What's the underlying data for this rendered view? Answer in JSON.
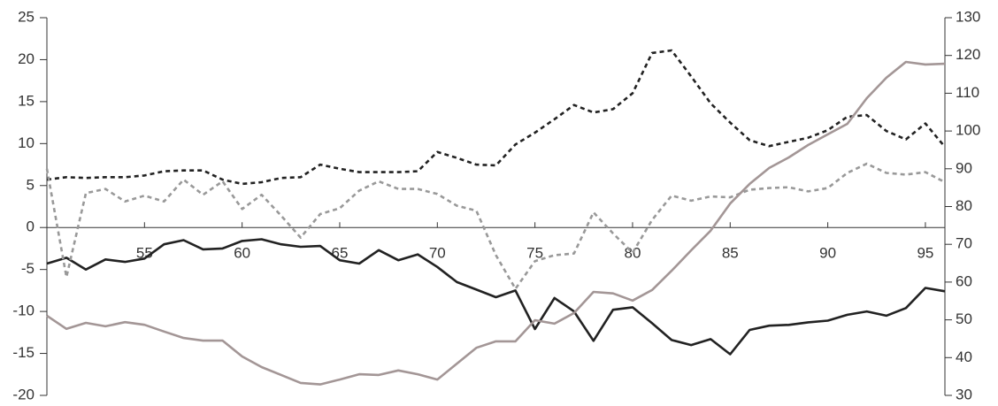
{
  "chart_data": {
    "type": "line",
    "x": [
      50,
      51,
      52,
      53,
      54,
      55,
      56,
      57,
      58,
      59,
      60,
      61,
      62,
      63,
      64,
      65,
      66,
      67,
      68,
      69,
      70,
      71,
      72,
      73,
      74,
      75,
      76,
      77,
      78,
      79,
      80,
      81,
      82,
      83,
      84,
      85,
      86,
      87,
      88,
      89,
      90,
      91,
      92,
      93,
      94,
      95,
      96
    ],
    "xlim": [
      50,
      96
    ],
    "xticks": [
      55,
      60,
      65,
      70,
      75,
      80,
      85,
      90,
      95
    ],
    "ylim": [
      -20,
      25
    ],
    "yticks": [
      -20,
      -15,
      -10,
      -5,
      0,
      5,
      10,
      15,
      20,
      25
    ],
    "y2lim": [
      30,
      130
    ],
    "y2ticks": [
      30,
      40,
      50,
      60,
      70,
      80,
      90,
      100,
      110,
      120,
      130
    ],
    "grid": false,
    "series": [
      {
        "color": "#222222",
        "dashed": true,
        "values": [
          5.7,
          6.0,
          5.9,
          6.0,
          6.0,
          6.2,
          6.7,
          6.8,
          6.8,
          5.7,
          5.2,
          5.4,
          5.9,
          6.0,
          7.5,
          7.0,
          6.6,
          6.6,
          6.6,
          6.7,
          9.0,
          8.3,
          7.5,
          7.4,
          9.9,
          11.3,
          12.9,
          14.6,
          13.7,
          14.1,
          16.0,
          20.8,
          21.1,
          18.0,
          14.8,
          12.5,
          10.4,
          9.7,
          10.2,
          10.7,
          11.6,
          13.2,
          13.4,
          11.5,
          10.5,
          12.4,
          9.6
        ]
      },
      {
        "color": "#222222",
        "dashed": false,
        "values": [
          -4.3,
          -3.6,
          -5.0,
          -3.8,
          -4.1,
          -3.7,
          -2.0,
          -1.5,
          -2.6,
          -2.5,
          -1.6,
          -1.4,
          -2.0,
          -2.3,
          -2.2,
          -3.9,
          -4.3,
          -2.7,
          -3.9,
          -3.2,
          -4.7,
          -6.5,
          -7.4,
          -8.3,
          -7.5,
          -12.1,
          -8.4,
          -10.0,
          -13.5,
          -9.8,
          -9.5,
          -11.4,
          -13.4,
          -14.0,
          -13.3,
          -15.1,
          -12.2,
          -11.7,
          -11.6,
          -11.3,
          -11.1,
          -10.4,
          -10.0,
          -10.5,
          -9.6,
          -7.2,
          -7.6
        ]
      },
      {
        "color": "#999999",
        "dashed": true,
        "values": [
          7.0,
          -5.9,
          4.1,
          4.6,
          3.1,
          3.8,
          3.1,
          5.7,
          3.9,
          5.5,
          2.2,
          3.9,
          1.4,
          -1.2,
          1.6,
          2.3,
          4.4,
          5.5,
          4.6,
          4.6,
          4.0,
          2.6,
          2.0,
          -3.3,
          -7.3,
          -4.0,
          -3.3,
          -3.1,
          1.8,
          -0.7,
          -3.0,
          0.9,
          3.8,
          3.2,
          3.7,
          3.6,
          4.5,
          4.7,
          4.8,
          4.3,
          4.7,
          6.5,
          7.6,
          6.5,
          6.3,
          6.6,
          5.4
        ]
      },
      {
        "color": "#a39696",
        "dashed": false,
        "axis": "y2",
        "values": [
          51.1,
          47.6,
          49.2,
          48.3,
          49.4,
          48.7,
          46.9,
          45.2,
          44.5,
          44.5,
          40.3,
          37.5,
          35.4,
          33.3,
          32.9,
          34.2,
          35.6,
          35.4,
          36.6,
          35.6,
          34.2,
          38.4,
          42.6,
          44.3,
          44.3,
          49.9,
          49.0,
          51.8,
          57.4,
          57.0,
          55.1,
          57.9,
          63.0,
          68.4,
          73.6,
          80.8,
          86.0,
          90.2,
          93.0,
          96.3,
          99.1,
          101.9,
          108.7,
          114.1,
          118.3,
          117.6,
          117.8
        ]
      }
    ]
  }
}
